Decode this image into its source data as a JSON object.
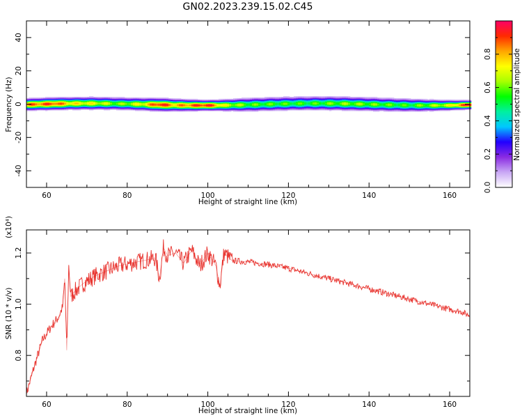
{
  "figure": {
    "title": "GN02.2023.239.15.02.C45"
  },
  "chart_data": [
    {
      "type": "heatmap",
      "title": "GN02.2023.239.15.02.C45",
      "xlabel": "Height of straight line (km)",
      "ylabel": "Frequency (Hz)",
      "xlim": [
        55,
        165
      ],
      "ylim": [
        -50,
        50
      ],
      "x_ticks": [
        60,
        80,
        100,
        120,
        140,
        160
      ],
      "x_tick_labels": [
        "60",
        "80",
        "100",
        "120",
        "140",
        "160"
      ],
      "y_ticks": [
        -40,
        -20,
        0,
        20,
        40
      ],
      "y_tick_labels": [
        "-40",
        "-20",
        "0",
        "20",
        "40"
      ],
      "colorbar": {
        "label": "Normalized spectral amplitude",
        "range": [
          0,
          1
        ],
        "ticks": [
          0.0,
          0.2,
          0.4,
          0.6,
          0.8
        ],
        "tick_labels": [
          "0.0",
          "0.2",
          "0.4",
          "0.6",
          "0.8"
        ],
        "colors": [
          "#ffffff",
          "#c9a8f5",
          "#8a2be2",
          "#2200ff",
          "#00c8ff",
          "#00f0a0",
          "#00ff00",
          "#a8ff00",
          "#ffff00",
          "#ffa500",
          "#ff2a00",
          "#ff0066"
        ]
      },
      "band": {
        "center_hz": 0,
        "halfwidth_hz_by_x": [
          [
            55,
            3
          ],
          [
            70,
            3.2
          ],
          [
            90,
            3.2
          ],
          [
            100,
            2.6
          ],
          [
            110,
            3.5
          ],
          [
            130,
            3.6
          ],
          [
            150,
            3.4
          ],
          [
            165,
            2.2
          ]
        ],
        "peak_amplitude_by_x": [
          [
            55,
            0.85
          ],
          [
            62,
            0.9
          ],
          [
            66,
            0.75
          ],
          [
            72,
            0.7
          ],
          [
            78,
            0.6
          ],
          [
            84,
            0.72
          ],
          [
            88,
            0.95
          ],
          [
            92,
            0.8
          ],
          [
            97,
            0.9
          ],
          [
            100,
            0.95
          ],
          [
            104,
            0.7
          ],
          [
            110,
            0.58
          ],
          [
            125,
            0.55
          ],
          [
            135,
            0.62
          ],
          [
            150,
            0.55
          ],
          [
            160,
            0.7
          ],
          [
            165,
            0.98
          ]
        ]
      }
    },
    {
      "type": "line",
      "xlabel": "Height of straight line (km)",
      "ylabel": "SNR (10 * v/v)",
      "y_multiplier": "(x10⁴)",
      "xlim": [
        55,
        165
      ],
      "ylim": [
        0.64,
        1.29
      ],
      "x_ticks": [
        60,
        80,
        100,
        120,
        140,
        160
      ],
      "x_tick_labels": [
        "60",
        "80",
        "100",
        "120",
        "140",
        "160"
      ],
      "y_ticks": [
        0.8,
        1.0,
        1.2
      ],
      "y_tick_labels": [
        "0.8",
        "1.0",
        "1.2"
      ],
      "series_color": "#e8322d",
      "x": [
        55,
        57,
        59,
        61,
        62,
        63,
        64,
        64.5,
        65,
        65.5,
        66,
        67,
        69,
        72,
        75,
        78,
        81,
        84,
        87,
        88,
        89,
        90,
        92,
        94,
        96,
        98,
        100,
        102,
        103,
        104,
        106,
        110,
        115,
        120,
        125,
        130,
        135,
        140,
        145,
        150,
        155,
        160,
        163,
        165
      ],
      "values": [
        0.65,
        0.76,
        0.86,
        0.91,
        0.93,
        0.95,
        0.99,
        1.1,
        0.82,
        1.15,
        1.03,
        1.05,
        1.08,
        1.11,
        1.13,
        1.15,
        1.16,
        1.17,
        1.18,
        1.1,
        1.22,
        1.19,
        1.2,
        1.16,
        1.21,
        1.15,
        1.2,
        1.15,
        1.07,
        1.2,
        1.17,
        1.165,
        1.155,
        1.14,
        1.12,
        1.1,
        1.08,
        1.06,
        1.04,
        1.02,
        1.0,
        0.98,
        0.97,
        0.955
      ]
    }
  ]
}
